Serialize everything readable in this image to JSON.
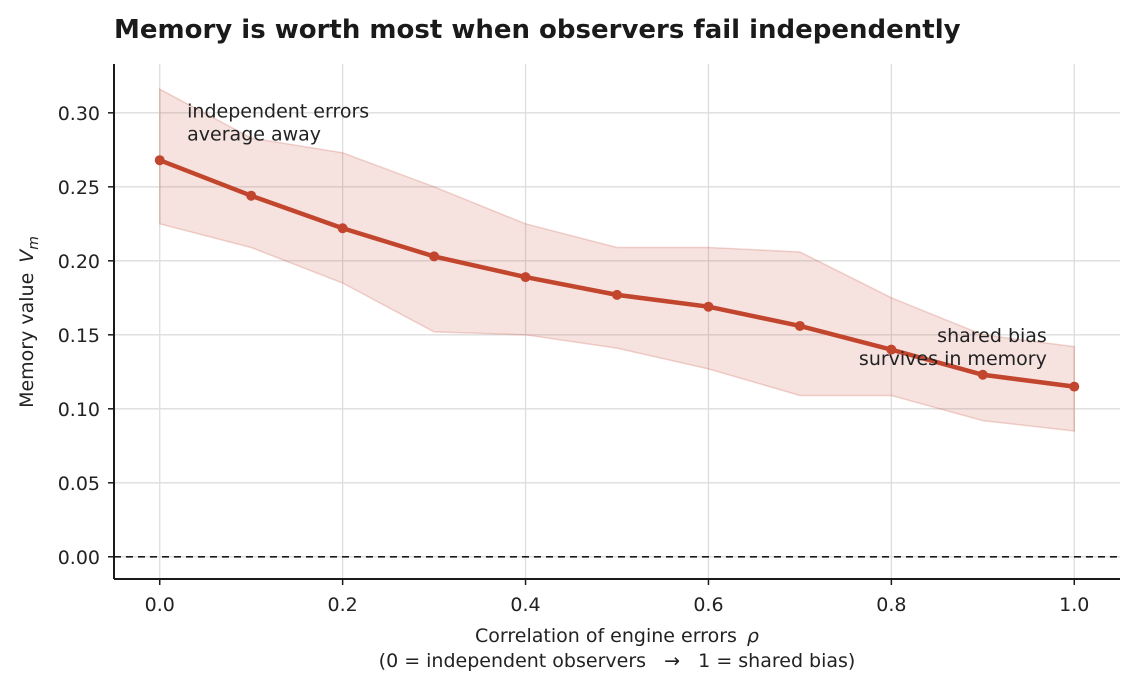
{
  "chart_data": {
    "type": "line",
    "title": "Memory is worth most when observers fail independently",
    "xlabel": "Correlation of engine errors",
    "xlabel_symbol": "ρ",
    "xlabel_line2": "(0 = independent observers   →   1 = shared bias)",
    "ylabel": "Memory value",
    "ylabel_symbol_main": "V",
    "ylabel_symbol_sub": "m",
    "xlim": [
      -0.05,
      1.05
    ],
    "ylim": [
      -0.015,
      0.333
    ],
    "xticks": [
      "0.0",
      "0.2",
      "0.4",
      "0.6",
      "0.8",
      "1.0"
    ],
    "yticks": [
      "0.00",
      "0.05",
      "0.10",
      "0.15",
      "0.20",
      "0.25",
      "0.30"
    ],
    "grid": true,
    "reference_line": {
      "y": 0.0,
      "style": "dashed"
    },
    "series": [
      {
        "x": [
          0.0,
          0.1,
          0.2,
          0.3,
          0.4,
          0.5,
          0.6,
          0.7,
          0.8,
          0.9,
          1.0
        ],
        "y": [
          0.268,
          0.244,
          0.222,
          0.203,
          0.189,
          0.177,
          0.169,
          0.156,
          0.14,
          0.123,
          0.115
        ],
        "band_low": [
          0.225,
          0.209,
          0.185,
          0.152,
          0.15,
          0.141,
          0.127,
          0.109,
          0.109,
          0.092,
          0.085
        ],
        "band_high": [
          0.316,
          0.283,
          0.273,
          0.25,
          0.225,
          0.209,
          0.209,
          0.206,
          0.175,
          0.15,
          0.142
        ],
        "color": "#c2452d",
        "band_color": "#c2452d"
      }
    ],
    "annotations": [
      {
        "lines": [
          "independent errors",
          "average away"
        ],
        "x": 0.03,
        "y": 0.297,
        "align": "left"
      },
      {
        "lines": [
          "shared bias",
          "survives in memory"
        ],
        "x": 0.97,
        "y": 0.145,
        "align": "right"
      }
    ]
  }
}
